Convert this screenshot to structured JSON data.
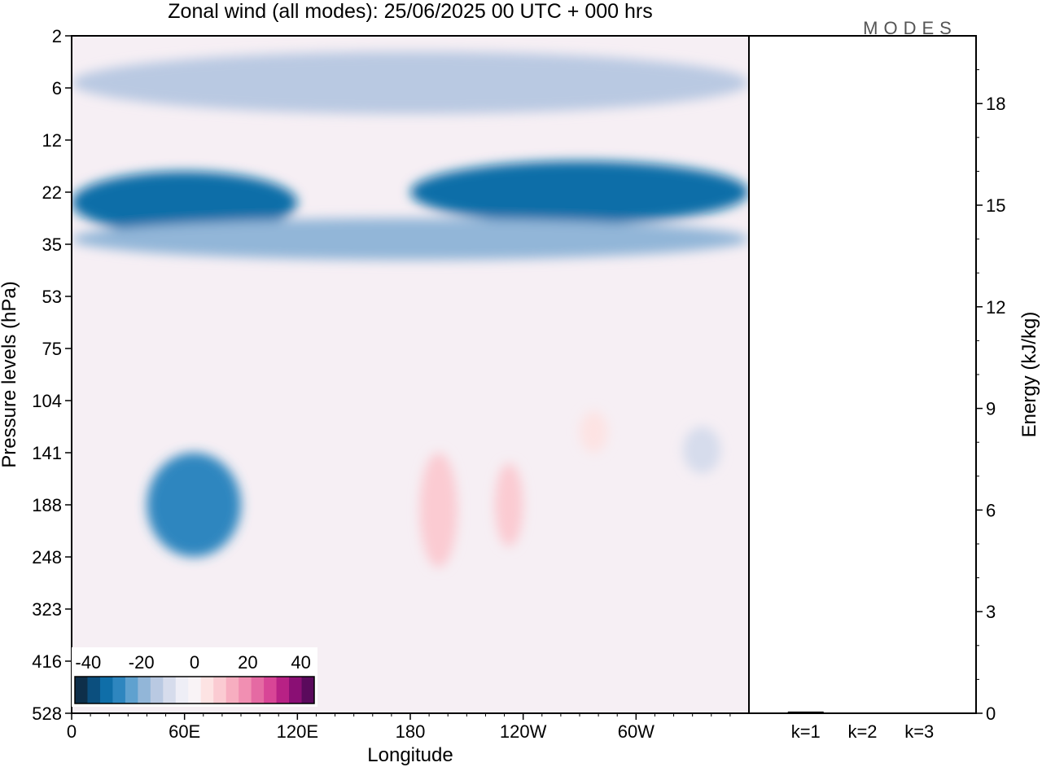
{
  "colors": {
    "scale": [
      "#0e2f4a",
      "#0b4f7e",
      "#0f6ea8",
      "#2e86bf",
      "#5fa1cf",
      "#92b6d8",
      "#b9c9e2",
      "#d6dcec",
      "#eeeef6",
      "#f9f3f6",
      "#fde3e3",
      "#fbcbd2",
      "#f7aec0",
      "#f18fb2",
      "#e56aa3",
      "#d84596",
      "#b82185",
      "#8a0f74",
      "#5a0a5c"
    ],
    "background": "#f6eff4",
    "frame": "#000000"
  },
  "chart_data": [
    {
      "type": "heatmap",
      "title": "Zonal wind (all modes):  25/06/2025  00 UTC  + 000 hrs",
      "xlabel": "Longitude",
      "ylabel": "Pressure levels (hPa)",
      "x_ticks": [
        "0",
        "60E",
        "120E",
        "180",
        "120W",
        "60W"
      ],
      "x_tick_lon": [
        0,
        60,
        120,
        180,
        240,
        300
      ],
      "xlim": [
        0,
        360
      ],
      "y_ticks": [
        "2",
        "6",
        "12",
        "22",
        "35",
        "53",
        "75",
        "104",
        "141",
        "188",
        "248",
        "323",
        "416",
        "528"
      ],
      "colorbar": {
        "labels": [
          "-40",
          "-20",
          "0",
          "20",
          "40"
        ],
        "range": [
          -45,
          45
        ],
        "step": 5
      },
      "field_features": [
        {
          "level_index": [
            0.3,
            1.5
          ],
          "lon": [
            0,
            360
          ],
          "value": -12
        },
        {
          "level_index": [
            2.6,
            3.8
          ],
          "lon": [
            0,
            120
          ],
          "value": -32
        },
        {
          "level_index": [
            2.4,
            3.6
          ],
          "lon": [
            180,
            360
          ],
          "value": -34
        },
        {
          "level_index": [
            3.5,
            4.3
          ],
          "lon": [
            0,
            360
          ],
          "value": -18
        },
        {
          "level_index": [
            8.0,
            10.0
          ],
          "lon": [
            40,
            90
          ],
          "value": -26
        },
        {
          "level_index": [
            8.0,
            10.2
          ],
          "lon": [
            185,
            205
          ],
          "value": 14
        },
        {
          "level_index": [
            8.2,
            9.8
          ],
          "lon": [
            225,
            240
          ],
          "value": 12
        },
        {
          "level_index": [
            7.2,
            8.0
          ],
          "lon": [
            270,
            285
          ],
          "value": 9
        },
        {
          "level_index": [
            7.5,
            8.4
          ],
          "lon": [
            325,
            345
          ],
          "value": -9
        }
      ]
    },
    {
      "type": "bar",
      "categories": [
        "k=1",
        "k=2",
        "k=3"
      ],
      "values": [
        0.05,
        0.02,
        0.02
      ],
      "ylabel": "Energy (kJ/kg)",
      "ylim": [
        0,
        20
      ],
      "y_ticks": [
        "0",
        "3",
        "6",
        "9",
        "12",
        "15",
        "18"
      ]
    }
  ],
  "logo": "MODES"
}
